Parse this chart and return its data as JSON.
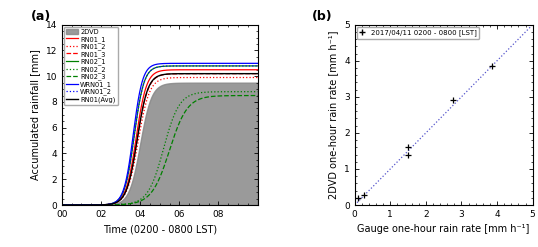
{
  "panel_a_label": "(a)",
  "panel_b_label": "(b)",
  "xlim_a": [
    0,
    10
  ],
  "ylim_a": [
    0,
    14
  ],
  "xticks_a": [
    0,
    2,
    4,
    6,
    8
  ],
  "xticklabels_a": [
    "00",
    "02",
    "04",
    "06",
    "08"
  ],
  "yticks_a": [
    0,
    2,
    4,
    6,
    8,
    10,
    12,
    14
  ],
  "xlabel_a": "Time (0200 - 0800 LST)",
  "ylabel_a": "Accumulated rainfall [mm]",
  "scatter_x": [
    0.1,
    0.25,
    1.5,
    1.5,
    2.75,
    3.85
  ],
  "scatter_y": [
    0.2,
    0.28,
    1.38,
    1.62,
    2.92,
    3.85
  ],
  "xlim_b": [
    0,
    5
  ],
  "ylim_b": [
    0,
    5
  ],
  "xticks_b": [
    0,
    1,
    2,
    3,
    4,
    5
  ],
  "yticks_b": [
    0,
    1,
    2,
    3,
    4,
    5
  ],
  "xlabel_b": "Gauge one-hour rain rate [mm h⁻¹]",
  "ylabel_b": "2DVD one-hour rain rate [mm h⁻¹]",
  "legend_b": "2017/04/11 0200 - 0800 [LST]",
  "diag_color": "#5555cc",
  "background_color": "#ffffff"
}
